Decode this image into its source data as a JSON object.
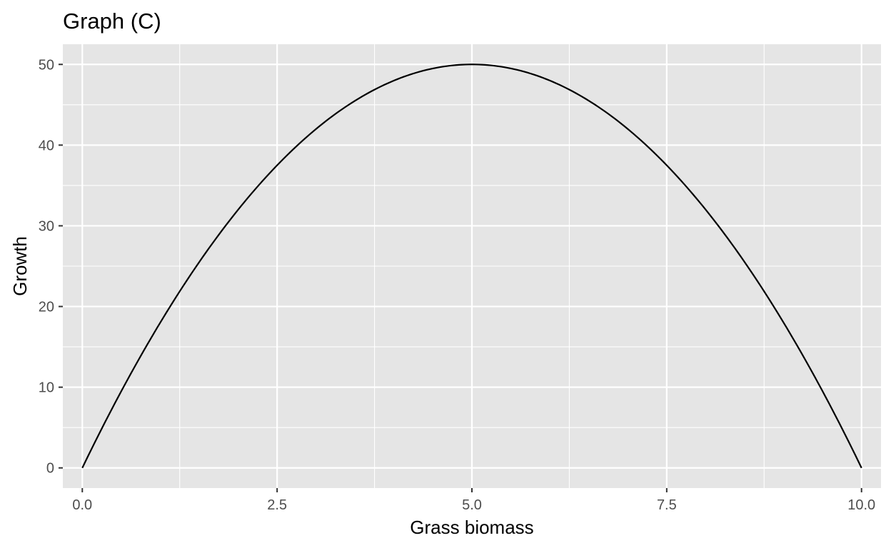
{
  "chart_data": {
    "type": "line",
    "title": "Graph (C)",
    "xlabel": "Grass biomass",
    "ylabel": "Growth",
    "xlim": [
      -0.25,
      10.25
    ],
    "ylim": [
      -2.5,
      52.5
    ],
    "x_ticks": [
      0.0,
      2.5,
      5.0,
      7.5,
      10.0
    ],
    "x_tick_labels": [
      "0.0",
      "2.5",
      "5.0",
      "7.5",
      "10.0"
    ],
    "y_ticks": [
      0,
      10,
      20,
      30,
      40,
      50
    ],
    "y_tick_labels": [
      "0",
      "10",
      "20",
      "30",
      "40",
      "50"
    ],
    "grid": true,
    "legend": "none",
    "colors": {
      "panel_background": "#e5e5e5",
      "gridline": "#ffffff",
      "line": "#000000",
      "tick_mark": "#333333"
    },
    "series": [
      {
        "x": [
          0,
          0.5,
          1,
          1.5,
          2,
          2.5,
          3,
          3.5,
          4,
          4.5,
          5,
          5.5,
          6,
          6.5,
          7,
          7.5,
          8,
          8.5,
          9,
          9.5,
          10
        ],
        "y": [
          0,
          9.5,
          18,
          25.5,
          32,
          37.5,
          42,
          45.5,
          48,
          49.5,
          50,
          49.5,
          48,
          45.5,
          42,
          37.5,
          32,
          25.5,
          18,
          9.5,
          0
        ]
      }
    ]
  }
}
